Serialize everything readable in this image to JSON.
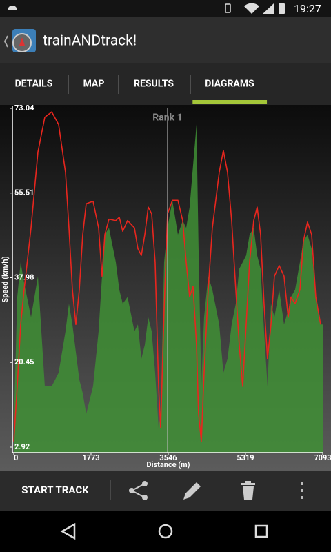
{
  "status_bar": {
    "time": "19:27"
  },
  "app_bar": {
    "title": "trainANDtrack!"
  },
  "tabs": [
    {
      "label": "DETAILS",
      "selected": false
    },
    {
      "label": "MAP",
      "selected": false
    },
    {
      "label": "RESULTS",
      "selected": false
    },
    {
      "label": "DIAGRAMS",
      "selected": true
    }
  ],
  "chart_data": {
    "type": "line",
    "y_label": "Speed (km/h)",
    "x_label": "Distance (m)",
    "annotation": {
      "text": "Rank 1",
      "x": 3530
    },
    "xlim": [
      0,
      7093
    ],
    "xticks": [
      0,
      1773,
      3546,
      5319,
      7093
    ],
    "ylim": [
      2.92,
      73.04
    ],
    "yticks": [
      2.92,
      20.45,
      37.98,
      55.51,
      73.04
    ],
    "x": [
      0,
      79,
      158,
      237,
      396,
      554,
      712,
      871,
      1029,
      1187,
      1266,
      1346,
      1425,
      1504,
      1583,
      1662,
      1820,
      1947,
      2026,
      2090,
      2185,
      2343,
      2422,
      2501,
      2612,
      2770,
      2849,
      2929,
      3008,
      3087,
      3166,
      3245,
      3324,
      3372,
      3451,
      3530,
      3641,
      3768,
      3878,
      3958,
      4037,
      4116,
      4195,
      4242,
      4306,
      4369,
      4464,
      4559,
      4717,
      4812,
      4907,
      5002,
      5097,
      5176,
      5256,
      5335,
      5414,
      5509,
      5588,
      5667,
      5746,
      5825,
      5905,
      5984,
      6094,
      6205,
      6300,
      6364,
      6459,
      6570,
      6649,
      6744,
      6839,
      6934,
      7045
    ],
    "series": [
      {
        "type": "line",
        "color": "#e8261e",
        "values": [
          4.1,
          15.5,
          28.3,
          35.5,
          48.3,
          64.0,
          71.2,
          72.3,
          69.7,
          59.8,
          48.3,
          35.5,
          28.3,
          35.5,
          46.9,
          53.3,
          53.8,
          48.3,
          38.3,
          46.9,
          50.1,
          49.8,
          50.5,
          47.6,
          49.8,
          48.3,
          44.0,
          42.6,
          46.9,
          52.6,
          51.2,
          41.2,
          15.5,
          6.9,
          31.2,
          51.2,
          54.0,
          54.0,
          49.8,
          41.2,
          34.0,
          36.2,
          24.1,
          9.8,
          4.1,
          18.3,
          35.5,
          48.3,
          59.8,
          64.3,
          59.8,
          49.8,
          35.5,
          24.1,
          15.5,
          28.3,
          41.2,
          49.8,
          52.6,
          46.9,
          32.6,
          21.2,
          28.3,
          38.3,
          40.5,
          38.3,
          29.8,
          34.0,
          32.6,
          35.5,
          45.5,
          49.5,
          46.9,
          34.0,
          28.3
        ]
      },
      {
        "type": "area",
        "color": "#3f8f35",
        "values": [
          6.9,
          34.0,
          41.2,
          36.9,
          29.8,
          38.3,
          15.5,
          15.5,
          18.3,
          26.9,
          32.6,
          28.3,
          22.6,
          16.9,
          14.1,
          9.8,
          15.5,
          26.9,
          38.3,
          46.9,
          48.3,
          41.2,
          35.5,
          32.6,
          34.0,
          26.9,
          28.3,
          21.2,
          24.1,
          29.8,
          26.9,
          18.3,
          6.9,
          9.8,
          41.2,
          48.3,
          54.0,
          46.9,
          49.8,
          48.3,
          52.6,
          61.2,
          69.7,
          44.0,
          15.5,
          29.8,
          38.3,
          35.5,
          28.3,
          18.3,
          21.2,
          28.3,
          32.6,
          39.8,
          41.2,
          42.6,
          46.9,
          48.3,
          42.6,
          39.8,
          26.9,
          15.5,
          32.6,
          29.8,
          35.5,
          28.3,
          31.2,
          34.0,
          35.5,
          41.2,
          45.5,
          46.9,
          44.0,
          34.0,
          28.3
        ]
      }
    ]
  },
  "bottom_bar": {
    "button": "START TRACK"
  }
}
